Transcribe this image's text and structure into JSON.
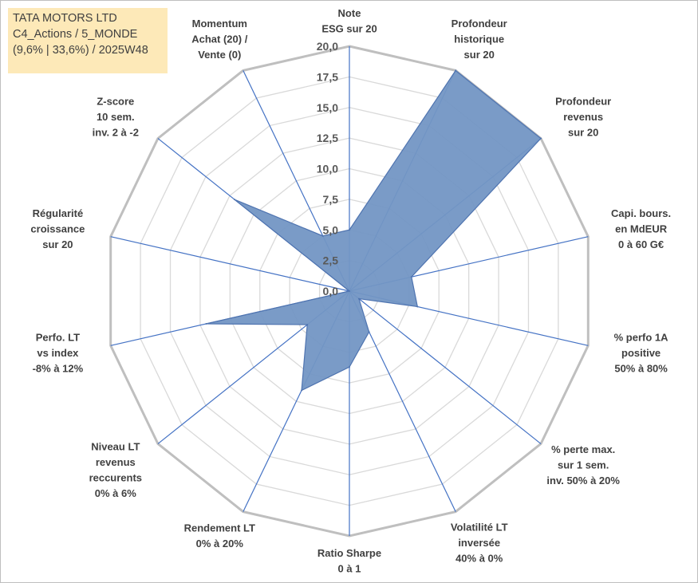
{
  "header": {
    "line1": "TATA MOTORS LTD",
    "line2": "C4_Actions / 5_MONDE",
    "line3": "(9,6% | 33,6%) / 2025W48"
  },
  "colors": {
    "fill": "#7396c4",
    "stroke": "#4f74b0",
    "axis": "#4472c4",
    "grid_outer": "#bfbfbf",
    "grid_inner": "#d9d9d9"
  },
  "chart_data": {
    "type": "radar",
    "rmin": 0,
    "rmax": 20,
    "tick_values": [
      0,
      2.5,
      5,
      7.5,
      10,
      12.5,
      15,
      17.5,
      20
    ],
    "tick_labels": [
      "0,0",
      "2,5",
      "5,0",
      "7,5",
      "10,0",
      "12,5",
      "15,0",
      "17,5",
      "20,0"
    ],
    "grid": true,
    "axes": [
      {
        "label": [
          "Note",
          "ESG sur 20"
        ],
        "value": 5.0
      },
      {
        "label": [
          "Profondeur",
          "historique",
          "sur 20"
        ],
        "value": 20.0
      },
      {
        "label": [
          "Profondeur",
          "revenus",
          "sur 20"
        ],
        "value": 20.0
      },
      {
        "label": [
          "Capi. bours.",
          "en MdEUR",
          "0 à 60 G€"
        ],
        "value": 5.2
      },
      {
        "label": [
          "% perfo 1A",
          "positive",
          "50% à 80%"
        ],
        "value": 5.7
      },
      {
        "label": [
          "% perte max.",
          "sur 1 sem.",
          "inv. 50% à 20%"
        ],
        "value": 1.0
      },
      {
        "label": [
          "Volatilité LT",
          "inversée",
          "40% à 0%"
        ],
        "value": 3.7
      },
      {
        "label": [
          "Ratio Sharpe",
          "0 à 1"
        ],
        "value": 6.2
      },
      {
        "label": [
          "Rendement LT",
          "0% à 20%"
        ],
        "value": 9.0
      },
      {
        "label": [
          "Niveau LT",
          "revenus",
          "reccurents",
          "0% à 6%"
        ],
        "value": 4.4
      },
      {
        "label": [
          "Perfo. LT",
          "vs index",
          "-8% à 12%"
        ],
        "value": 12.0
      },
      {
        "label": [
          "Régularité",
          "croissance",
          "sur 20"
        ],
        "value": 0.0
      },
      {
        "label": [
          "Z-score",
          "10 sem.",
          "inv. 2 à -2"
        ],
        "value": 12.0
      },
      {
        "label": [
          "Momentum",
          "Achat (20) /",
          "Vente (0)"
        ],
        "value": 5.0
      }
    ]
  }
}
